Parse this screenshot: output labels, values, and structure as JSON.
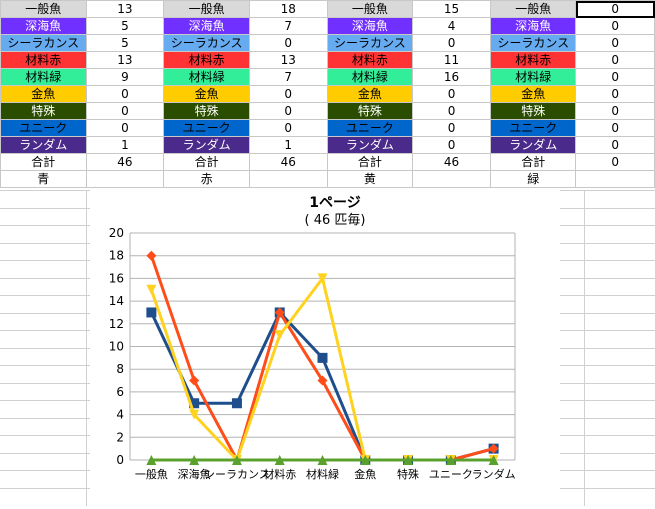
{
  "categories": [
    "一般魚",
    "深海魚",
    "シーラカンス",
    "材料赤",
    "材料緑",
    "金魚",
    "特殊",
    "ユニーク",
    "ランダム"
  ],
  "category_colors": [
    "#d9d9d9",
    "#7030ff",
    "#66aaf0",
    "#ff3333",
    "#33ee99",
    "#ffcc00",
    "#2a4d00",
    "#0066cc",
    "#4a2a8a"
  ],
  "category_text_colors": [
    "#000000",
    "#ffffff",
    "#000000",
    "#000000",
    "#000000",
    "#000000",
    "#ffffff",
    "#000000",
    "#ffffff"
  ],
  "groups": [
    {
      "name": "青",
      "values": [
        "13",
        "5",
        "5",
        "13",
        "9",
        "0",
        "0",
        "0",
        "1"
      ],
      "total_label": "合計",
      "total": "46"
    },
    {
      "name": "赤",
      "values": [
        "18",
        "7",
        "0",
        "13",
        "7",
        "0",
        "0",
        "0",
        "1"
      ],
      "total_label": "合計",
      "total": "46"
    },
    {
      "name": "黄",
      "values": [
        "15",
        "4",
        "0",
        "11",
        "16",
        "0",
        "0",
        "0",
        "0"
      ],
      "total_label": "合計",
      "total": "46"
    },
    {
      "name": "緑",
      "values": [
        "0",
        "0",
        "0",
        "0",
        "0",
        "0",
        "0",
        "0",
        "0"
      ],
      "total_label": "合計",
      "total": "0"
    }
  ],
  "chart_data": {
    "type": "line",
    "title": "1ページ",
    "subtitle": "( 46 匹毎)",
    "categories": [
      "一般魚",
      "深海魚",
      "シーラカンス",
      "材料赤",
      "材料緑",
      "金魚",
      "特殊",
      "ユニーク",
      "ランダム"
    ],
    "ylim": [
      0,
      20
    ],
    "yticks": [
      0,
      2,
      4,
      6,
      8,
      10,
      12,
      14,
      16,
      18,
      20
    ],
    "grid": true,
    "series": [
      {
        "color": "#1f4e8c",
        "marker": "square",
        "values": [
          13,
          5,
          5,
          13,
          9,
          0,
          0,
          0,
          1
        ]
      },
      {
        "color": "#ff4d1a",
        "marker": "diamond",
        "values": [
          18,
          7,
          0,
          13,
          7,
          0,
          0,
          0,
          1
        ]
      },
      {
        "color": "#ffd21f",
        "marker": "triangle-down",
        "values": [
          15,
          4,
          0,
          11,
          16,
          0,
          0,
          0,
          0
        ]
      },
      {
        "color": "#5aa02c",
        "marker": "triangle",
        "values": [
          0,
          0,
          0,
          0,
          0,
          0,
          0,
          0,
          0
        ]
      }
    ]
  }
}
